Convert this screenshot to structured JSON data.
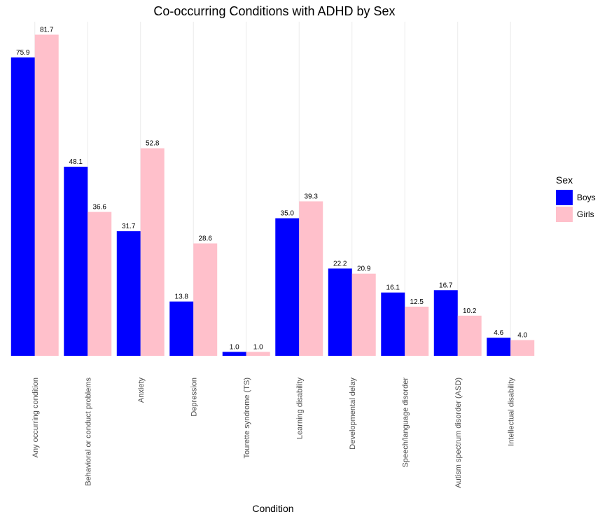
{
  "chart_data": {
    "type": "bar",
    "title": "Co-occurring Conditions with ADHD by Sex",
    "xlabel": "Condition",
    "ylabel": "",
    "categories": [
      "Any occurring condition",
      "Behavioral or conduct problems",
      "Anxiety",
      "Depression",
      "Tourette syndrome (TS)",
      "Learning disability",
      "Developmental delay",
      "Speech/language disorder",
      "Autism spectrum disorder (ASD)",
      "Intellectual disability"
    ],
    "series": [
      {
        "name": "Boys",
        "color": "#0000ff",
        "values": [
          75.9,
          48.1,
          31.7,
          13.8,
          1.0,
          35.0,
          22.2,
          16.1,
          16.7,
          4.6
        ]
      },
      {
        "name": "Girls",
        "color": "#ffc0cb",
        "values": [
          81.7,
          36.6,
          52.8,
          28.6,
          1.0,
          39.3,
          20.9,
          12.5,
          10.2,
          4.0
        ]
      }
    ],
    "data_labels": [
      [
        "75.9",
        "48.1",
        "31.7",
        "13.8",
        "1.0",
        "35.0",
        "22.2",
        "16.1",
        "16.7",
        "4.6"
      ],
      [
        "81.7",
        "36.6",
        "52.8",
        "28.6",
        "1.0",
        "39.3",
        "20.9",
        "12.5",
        "10.2",
        "4.0"
      ]
    ],
    "ylim": [
      0,
      85
    ],
    "y_axis_shown": false,
    "grid": "vertical major",
    "legend": {
      "title": "Sex",
      "position": "right"
    }
  }
}
